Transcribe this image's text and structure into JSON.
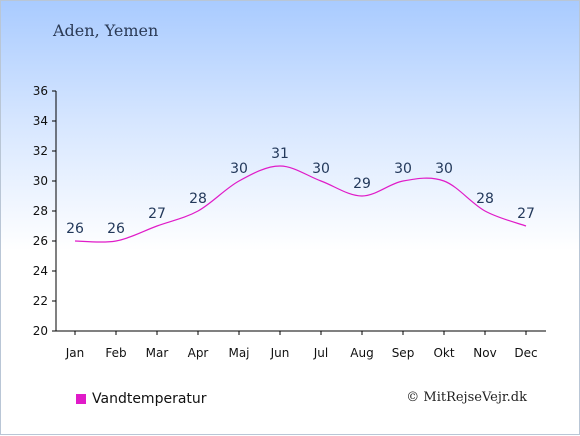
{
  "location": "Aden, Yemen",
  "legend_label": "Vandtemperatur",
  "copyright": "© MitRejseVejr.dk",
  "colors": {
    "series": "#e01bc8",
    "label": "#23395b"
  },
  "chart_data": {
    "type": "line",
    "categories": [
      "Jan",
      "Feb",
      "Mar",
      "Apr",
      "Maj",
      "Jun",
      "Jul",
      "Aug",
      "Sep",
      "Okt",
      "Nov",
      "Dec"
    ],
    "series": [
      {
        "name": "Vandtemperatur",
        "values": [
          26,
          26,
          27,
          28,
          30,
          31,
          30,
          29,
          30,
          30,
          28,
          27
        ]
      }
    ],
    "ylim": [
      20,
      36
    ],
    "yticks": [
      20,
      22,
      24,
      26,
      28,
      30,
      32,
      34,
      36
    ],
    "grid": false,
    "legend_position": "bottom-left"
  }
}
